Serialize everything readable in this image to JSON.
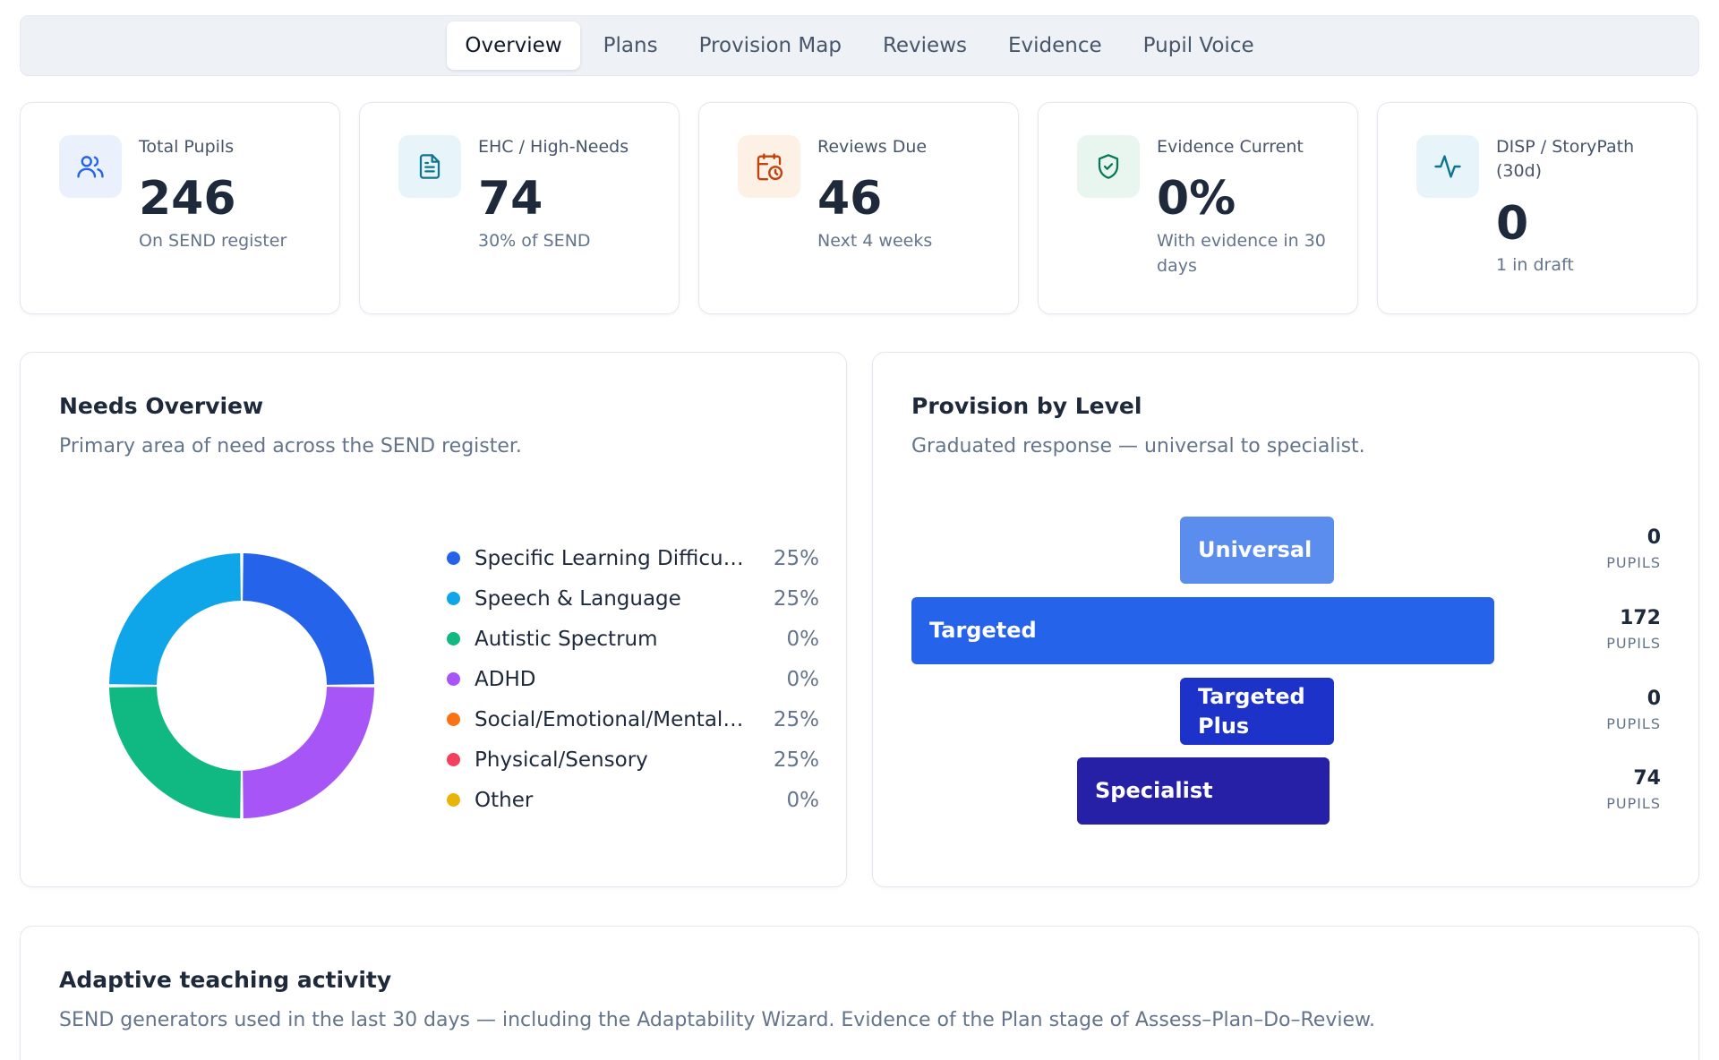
{
  "tabs": [
    {
      "label": "Overview",
      "active": true
    },
    {
      "label": "Plans",
      "active": false
    },
    {
      "label": "Provision Map",
      "active": false
    },
    {
      "label": "Reviews",
      "active": false
    },
    {
      "label": "Evidence",
      "active": false
    },
    {
      "label": "Pupil Voice",
      "active": false
    }
  ],
  "stats": [
    {
      "label": "Total Pupils",
      "value": "246",
      "sub": "On SEND register",
      "icon": "users-icon",
      "color": "#2563eb",
      "bg": "#eaf1fd"
    },
    {
      "label": "EHC / High-Needs",
      "value": "74",
      "sub": "30% of SEND",
      "icon": "document-icon",
      "color": "#0e7490",
      "bg": "#e7f5fa"
    },
    {
      "label": "Reviews Due",
      "value": "46",
      "sub": "Next 4 weeks",
      "icon": "calendar-clock-icon",
      "color": "#c2410c",
      "bg": "#fdf1e5"
    },
    {
      "label": "Evidence Current",
      "value": "0%",
      "sub": "With evidence in 30 days",
      "icon": "shield-check-icon",
      "color": "#047857",
      "bg": "#e8f6ef"
    },
    {
      "label": "DISP / StoryPath (30d)",
      "value": "0",
      "sub": "1 in draft",
      "icon": "activity-icon",
      "color": "#0e7490",
      "bg": "#e7f5fa"
    }
  ],
  "needs": {
    "title": "Needs Overview",
    "description": "Primary area of need across the SEND register."
  },
  "provision": {
    "title": "Provision by Level",
    "description": "Graduated response — universal to specialist.",
    "unit": "PUPILS",
    "levels": [
      {
        "label": "Universal",
        "count": "0",
        "color": "#5b8def"
      },
      {
        "label": "Targeted",
        "count": "172",
        "color": "#2563eb"
      },
      {
        "label": "Targeted Plus",
        "count": "0",
        "color": "#1d32c8"
      },
      {
        "label": "Specialist",
        "count": "74",
        "color": "#2620a6"
      }
    ]
  },
  "activity": {
    "title": "Adaptive teaching activity",
    "description": "SEND generators used in the last 30 days — including the Adaptability Wizard. Evidence of the Plan stage of Assess–Plan–Do–Review."
  },
  "chart_data": {
    "type": "pie",
    "categories": [
      "Specific Learning Difficulty",
      "Speech & Language",
      "Autistic Spectrum",
      "ADHD",
      "Social/Emotional/Mental …",
      "Physical/Sensory",
      "Other"
    ],
    "values": [
      25,
      25,
      0,
      0,
      25,
      25,
      0
    ],
    "labels": [
      "25%",
      "25%",
      "0%",
      "0%",
      "25%",
      "25%",
      "0%"
    ],
    "colors": [
      "#2563eb",
      "#0ea5e9",
      "#10b981",
      "#a855f7",
      "#f97316",
      "#f43f5e",
      "#eab308"
    ],
    "slice_colors_as_rendered": [
      "#2563eb",
      "#a855f7",
      "#10b981",
      "#0ea5e9"
    ],
    "legend": "right"
  }
}
